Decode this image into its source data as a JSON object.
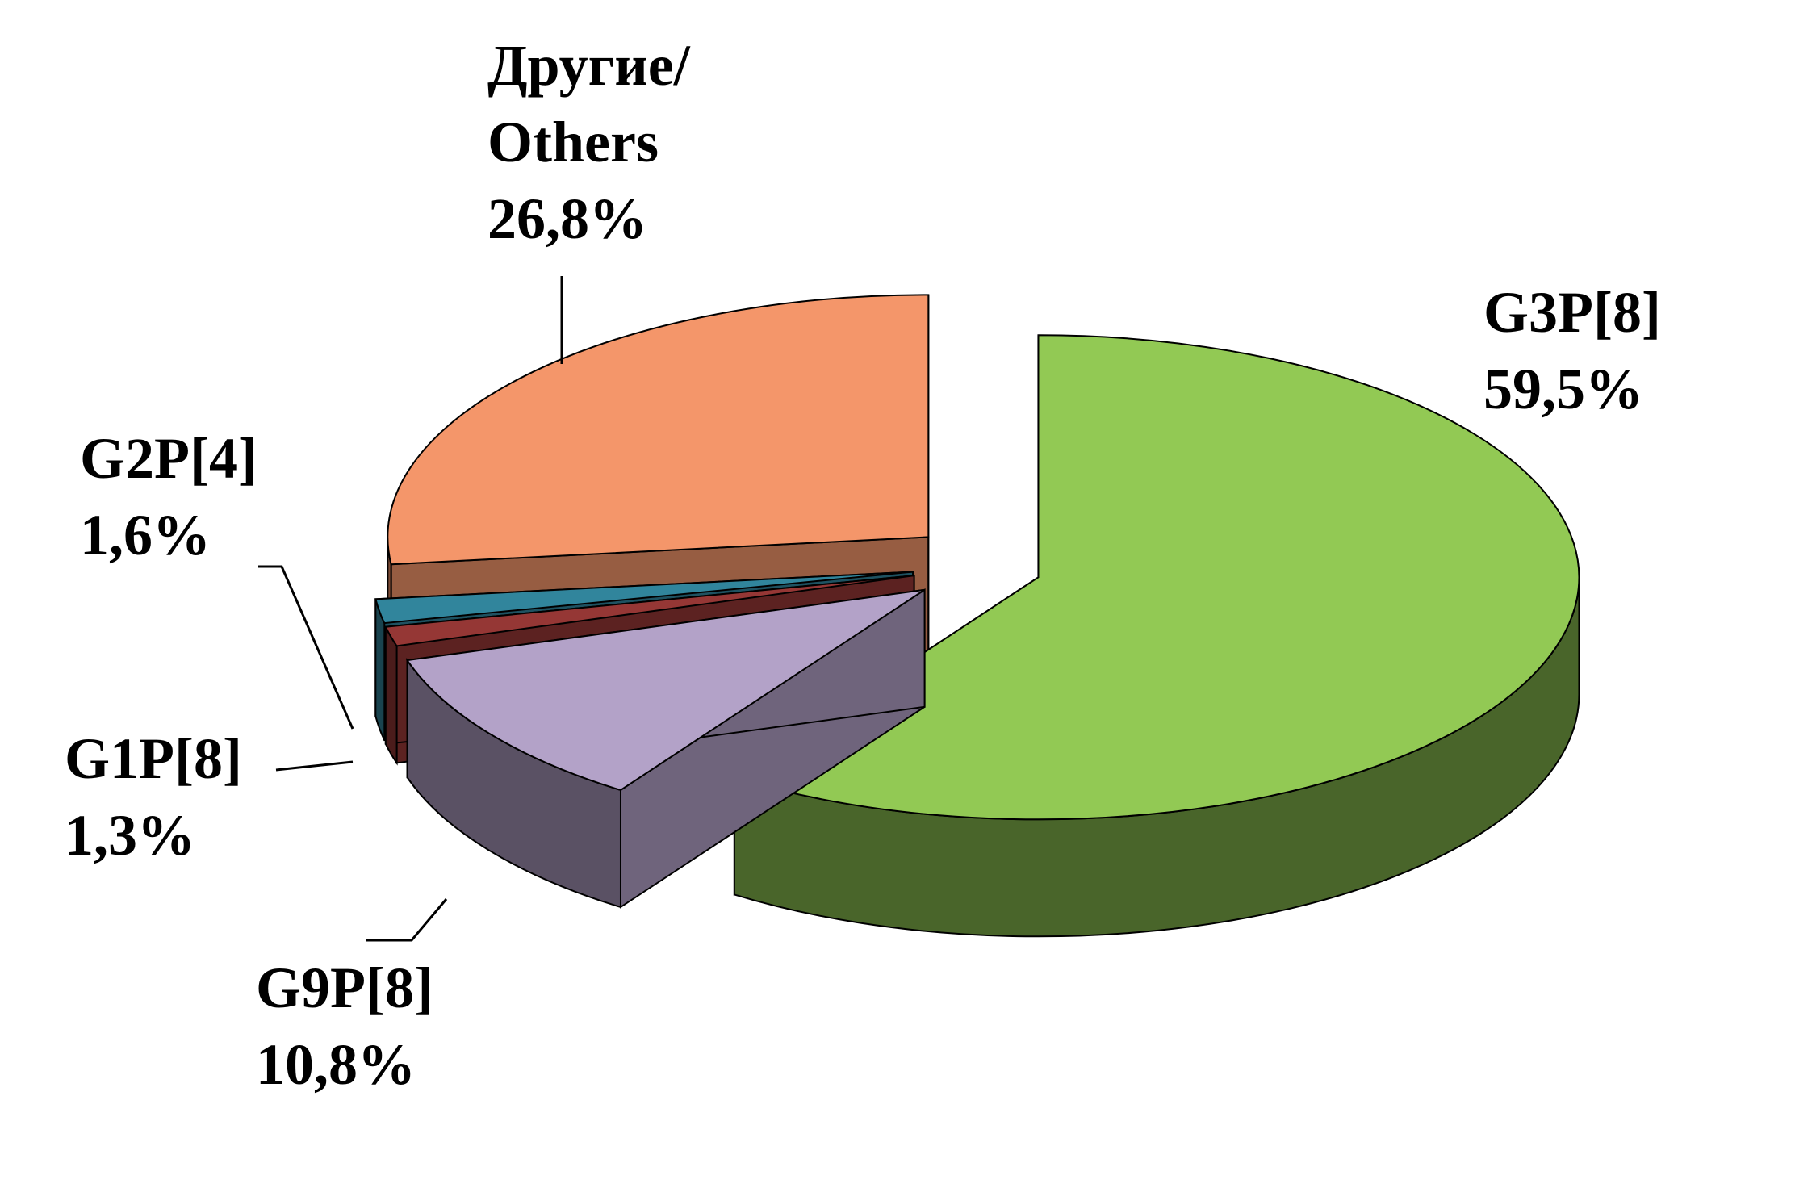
{
  "chart_data": {
    "type": "pie3d",
    "categories": [
      "G3P[8]",
      "G9P[8]",
      "G1P[8]",
      "G2P[4]",
      "Другие/ Others"
    ],
    "values": [
      59.5,
      10.8,
      1.3,
      1.6,
      26.8
    ],
    "value_labels": [
      "59,5%",
      "10,8%",
      "1,3%",
      "1,6%",
      "26,8%"
    ],
    "colors": [
      "#92c954",
      "#b3a2c8",
      "#953735",
      "#31859c",
      "#f4966a"
    ]
  }
}
